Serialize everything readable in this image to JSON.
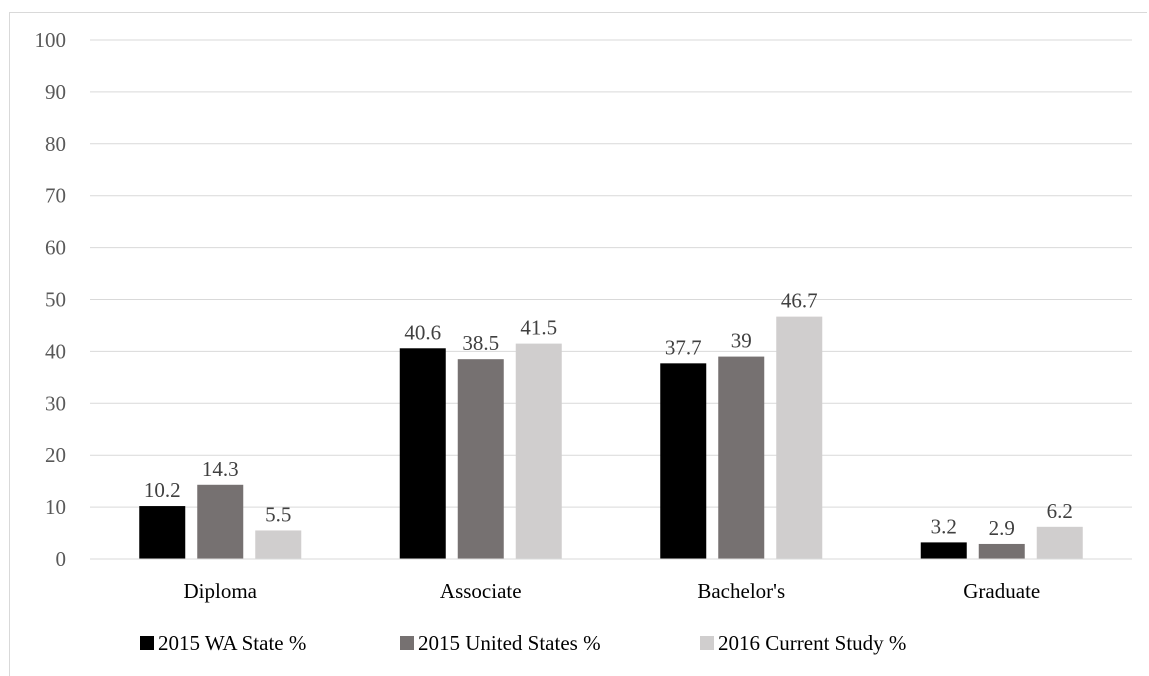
{
  "chart_data": {
    "type": "bar",
    "categories": [
      "Diploma",
      "Associate",
      "Bachelor's",
      "Graduate"
    ],
    "series": [
      {
        "name": "2015 WA State %",
        "values": [
          10.2,
          40.6,
          37.7,
          3.2
        ],
        "labels": [
          "10.2",
          "40.6",
          "37.7",
          "3.2"
        ],
        "color": "#000000"
      },
      {
        "name": "2015 United States %",
        "values": [
          14.3,
          38.5,
          39,
          2.9
        ],
        "labels": [
          "14.3",
          "38.5",
          "39",
          "2.9"
        ],
        "color": "#767171"
      },
      {
        "name": "2016 Current Study %",
        "values": [
          5.5,
          41.5,
          46.7,
          6.2
        ],
        "labels": [
          "5.5",
          "41.5",
          "46.7",
          "6.2"
        ],
        "color": "#d0cece"
      }
    ],
    "yticks": [
      "0",
      "10",
      "20",
      "30",
      "40",
      "50",
      "60",
      "70",
      "80",
      "90",
      "100"
    ],
    "ylim": [
      0,
      100
    ],
    "grid": true,
    "legend": "bottom-center"
  }
}
